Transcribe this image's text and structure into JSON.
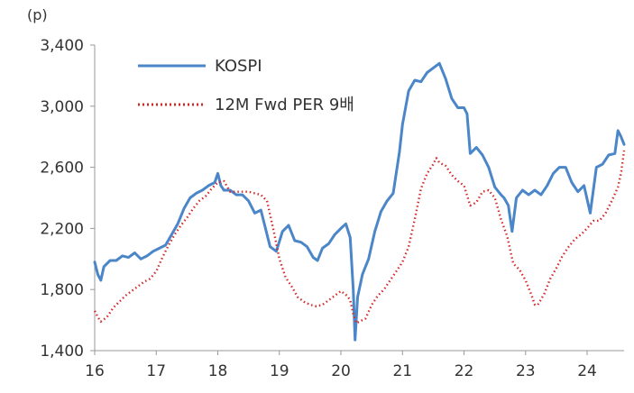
{
  "chart_data": {
    "type": "line",
    "unit": "(p)",
    "ylim": [
      1400,
      3400
    ],
    "y_ticks": [
      "1,400",
      "1,800",
      "2,200",
      "2,600",
      "3,000",
      "3,400"
    ],
    "xlim": [
      16,
      24.6
    ],
    "x_ticks": [
      "16",
      "17",
      "18",
      "19",
      "20",
      "21",
      "22",
      "23",
      "24"
    ],
    "grid": false,
    "legend_position": "top-left",
    "colors": {
      "kospi": "#4a86c8",
      "per": "#d42a2a",
      "axis": "#999999"
    },
    "series": [
      {
        "name": "KOSPI",
        "style": "solid",
        "x": [
          16.0,
          16.05,
          16.1,
          16.15,
          16.25,
          16.35,
          16.45,
          16.55,
          16.65,
          16.75,
          16.85,
          16.95,
          17.05,
          17.15,
          17.25,
          17.35,
          17.45,
          17.55,
          17.65,
          17.75,
          17.85,
          17.95,
          18.0,
          18.05,
          18.1,
          18.2,
          18.3,
          18.4,
          18.5,
          18.6,
          18.7,
          18.8,
          18.85,
          18.95,
          19.05,
          19.15,
          19.25,
          19.35,
          19.45,
          19.55,
          19.62,
          19.7,
          19.8,
          19.9,
          20.0,
          20.08,
          20.15,
          20.2,
          20.23,
          20.27,
          20.35,
          20.45,
          20.55,
          20.65,
          20.75,
          20.85,
          20.95,
          21.0,
          21.05,
          21.1,
          21.2,
          21.3,
          21.4,
          21.5,
          21.6,
          21.7,
          21.8,
          21.9,
          22.0,
          22.05,
          22.1,
          22.2,
          22.3,
          22.4,
          22.5,
          22.6,
          22.65,
          22.72,
          22.78,
          22.85,
          22.95,
          23.05,
          23.15,
          23.25,
          23.35,
          23.45,
          23.55,
          23.65,
          23.75,
          23.85,
          23.95,
          24.05,
          24.15,
          24.25,
          24.35,
          24.45,
          24.5,
          24.55,
          24.6
        ],
        "y": [
          1980,
          1900,
          1860,
          1950,
          1990,
          1990,
          2020,
          2010,
          2040,
          2000,
          2020,
          2050,
          2070,
          2090,
          2160,
          2230,
          2330,
          2400,
          2430,
          2450,
          2480,
          2500,
          2560,
          2480,
          2450,
          2450,
          2420,
          2420,
          2380,
          2300,
          2320,
          2160,
          2080,
          2050,
          2180,
          2220,
          2120,
          2110,
          2080,
          2010,
          1990,
          2070,
          2100,
          2160,
          2200,
          2230,
          2140,
          1800,
          1470,
          1750,
          1900,
          2000,
          2180,
          2310,
          2380,
          2430,
          2700,
          2880,
          2990,
          3100,
          3170,
          3160,
          3220,
          3250,
          3280,
          3180,
          3050,
          2990,
          2990,
          2950,
          2690,
          2730,
          2680,
          2600,
          2470,
          2420,
          2400,
          2350,
          2180,
          2400,
          2450,
          2420,
          2450,
          2420,
          2480,
          2560,
          2600,
          2600,
          2500,
          2440,
          2480,
          2300,
          2600,
          2620,
          2680,
          2690,
          2840,
          2800,
          2750
        ]
      },
      {
        "name": "12M Fwd PER 9배",
        "style": "dotted",
        "x": [
          16.0,
          16.05,
          16.1,
          16.2,
          16.3,
          16.4,
          16.5,
          16.6,
          16.7,
          16.8,
          16.9,
          17.0,
          17.1,
          17.2,
          17.3,
          17.4,
          17.5,
          17.6,
          17.7,
          17.8,
          17.9,
          18.0,
          18.1,
          18.2,
          18.3,
          18.4,
          18.5,
          18.6,
          18.7,
          18.8,
          18.9,
          19.0,
          19.1,
          19.2,
          19.3,
          19.4,
          19.5,
          19.6,
          19.7,
          19.8,
          19.9,
          20.0,
          20.1,
          20.15,
          20.2,
          20.25,
          20.3,
          20.4,
          20.5,
          20.6,
          20.7,
          20.8,
          20.9,
          21.0,
          21.1,
          21.2,
          21.3,
          21.4,
          21.5,
          21.55,
          21.6,
          21.7,
          21.8,
          21.9,
          22.0,
          22.1,
          22.2,
          22.3,
          22.4,
          22.5,
          22.6,
          22.7,
          22.8,
          22.85,
          22.9,
          23.0,
          23.1,
          23.15,
          23.2,
          23.3,
          23.4,
          23.5,
          23.6,
          23.7,
          23.8,
          23.9,
          24.0,
          24.1,
          24.2,
          24.3,
          24.4,
          24.5,
          24.55,
          24.6
        ],
        "y": [
          1660,
          1620,
          1590,
          1620,
          1680,
          1720,
          1760,
          1790,
          1820,
          1850,
          1870,
          1920,
          2010,
          2090,
          2160,
          2220,
          2270,
          2330,
          2380,
          2410,
          2460,
          2500,
          2510,
          2440,
          2440,
          2440,
          2440,
          2430,
          2420,
          2380,
          2200,
          2000,
          1880,
          1820,
          1750,
          1720,
          1700,
          1690,
          1700,
          1730,
          1760,
          1790,
          1760,
          1730,
          1640,
          1580,
          1590,
          1610,
          1700,
          1760,
          1800,
          1860,
          1920,
          1980,
          2080,
          2260,
          2460,
          2560,
          2620,
          2660,
          2630,
          2610,
          2550,
          2510,
          2480,
          2350,
          2370,
          2440,
          2450,
          2400,
          2260,
          2150,
          1970,
          1950,
          1930,
          1860,
          1760,
          1700,
          1700,
          1770,
          1870,
          1940,
          2020,
          2080,
          2130,
          2160,
          2200,
          2250,
          2250,
          2300,
          2380,
          2470,
          2560,
          2710
        ]
      }
    ]
  }
}
